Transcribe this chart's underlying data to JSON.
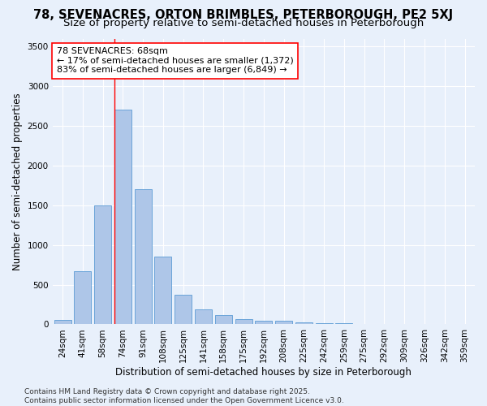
{
  "title1": "78, SEVENACRES, ORTON BRIMBLES, PETERBOROUGH, PE2 5XJ",
  "title2": "Size of property relative to semi-detached houses in Peterborough",
  "xlabel": "Distribution of semi-detached houses by size in Peterborough",
  "ylabel": "Number of semi-detached properties",
  "categories": [
    "24sqm",
    "41sqm",
    "58sqm",
    "74sqm",
    "91sqm",
    "108sqm",
    "125sqm",
    "141sqm",
    "158sqm",
    "175sqm",
    "192sqm",
    "208sqm",
    "225sqm",
    "242sqm",
    "259sqm",
    "275sqm",
    "292sqm",
    "309sqm",
    "326sqm",
    "342sqm",
    "359sqm"
  ],
  "values": [
    55,
    665,
    1500,
    2700,
    1700,
    850,
    370,
    185,
    120,
    70,
    50,
    45,
    30,
    20,
    10,
    5,
    3,
    2,
    1,
    1,
    0
  ],
  "bar_color": "#aec6e8",
  "bar_edge_color": "#5b9bd5",
  "vline_x_index": 2.58,
  "vline_color": "red",
  "annotation_text": "78 SEVENACRES: 68sqm\n← 17% of semi-detached houses are smaller (1,372)\n83% of semi-detached houses are larger (6,849) →",
  "annotation_box_color": "white",
  "annotation_box_edge_color": "red",
  "ylim": [
    0,
    3600
  ],
  "yticks": [
    0,
    500,
    1000,
    1500,
    2000,
    2500,
    3000,
    3500
  ],
  "bg_color": "#e8f0fb",
  "footer_text": "Contains HM Land Registry data © Crown copyright and database right 2025.\nContains public sector information licensed under the Open Government Licence v3.0.",
  "title_fontsize": 10.5,
  "subtitle_fontsize": 9.5,
  "axis_label_fontsize": 8.5,
  "tick_fontsize": 7.5,
  "annotation_fontsize": 8,
  "footer_fontsize": 6.5
}
